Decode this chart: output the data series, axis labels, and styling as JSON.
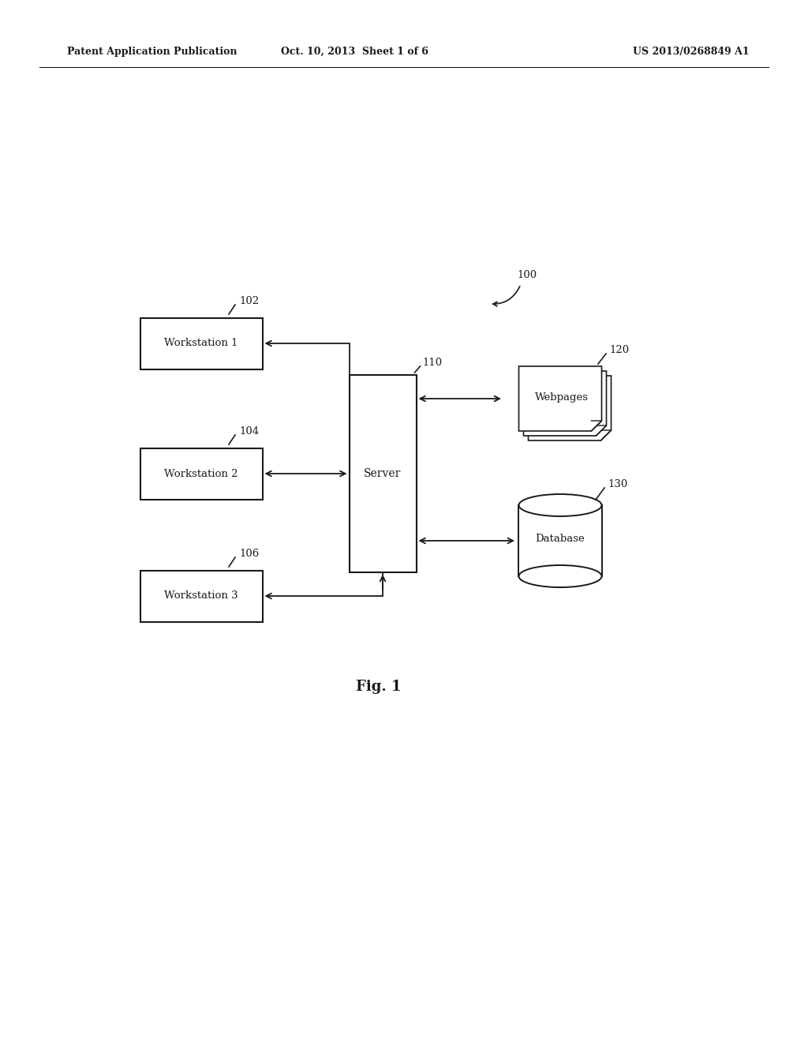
{
  "bg_color": "#ffffff",
  "header_left": "Patent Application Publication",
  "header_mid": "Oct. 10, 2013  Sheet 1 of 6",
  "header_right": "US 2013/0268849 A1",
  "fig_label": "Fig. 1",
  "label_100": "100",
  "label_102": "102",
  "label_104": "104",
  "label_106": "106",
  "label_110": "110",
  "label_120": "120",
  "label_130": "130",
  "ws1_label": "Workstation 1",
  "ws2_label": "Workstation 2",
  "ws3_label": "Workstation 3",
  "server_label": "Server",
  "webpages_label": "Webpages",
  "database_label": "Database",
  "line_color": "#1a1a1a",
  "box_fill": "#ffffff",
  "box_edge": "#1a1a1a"
}
